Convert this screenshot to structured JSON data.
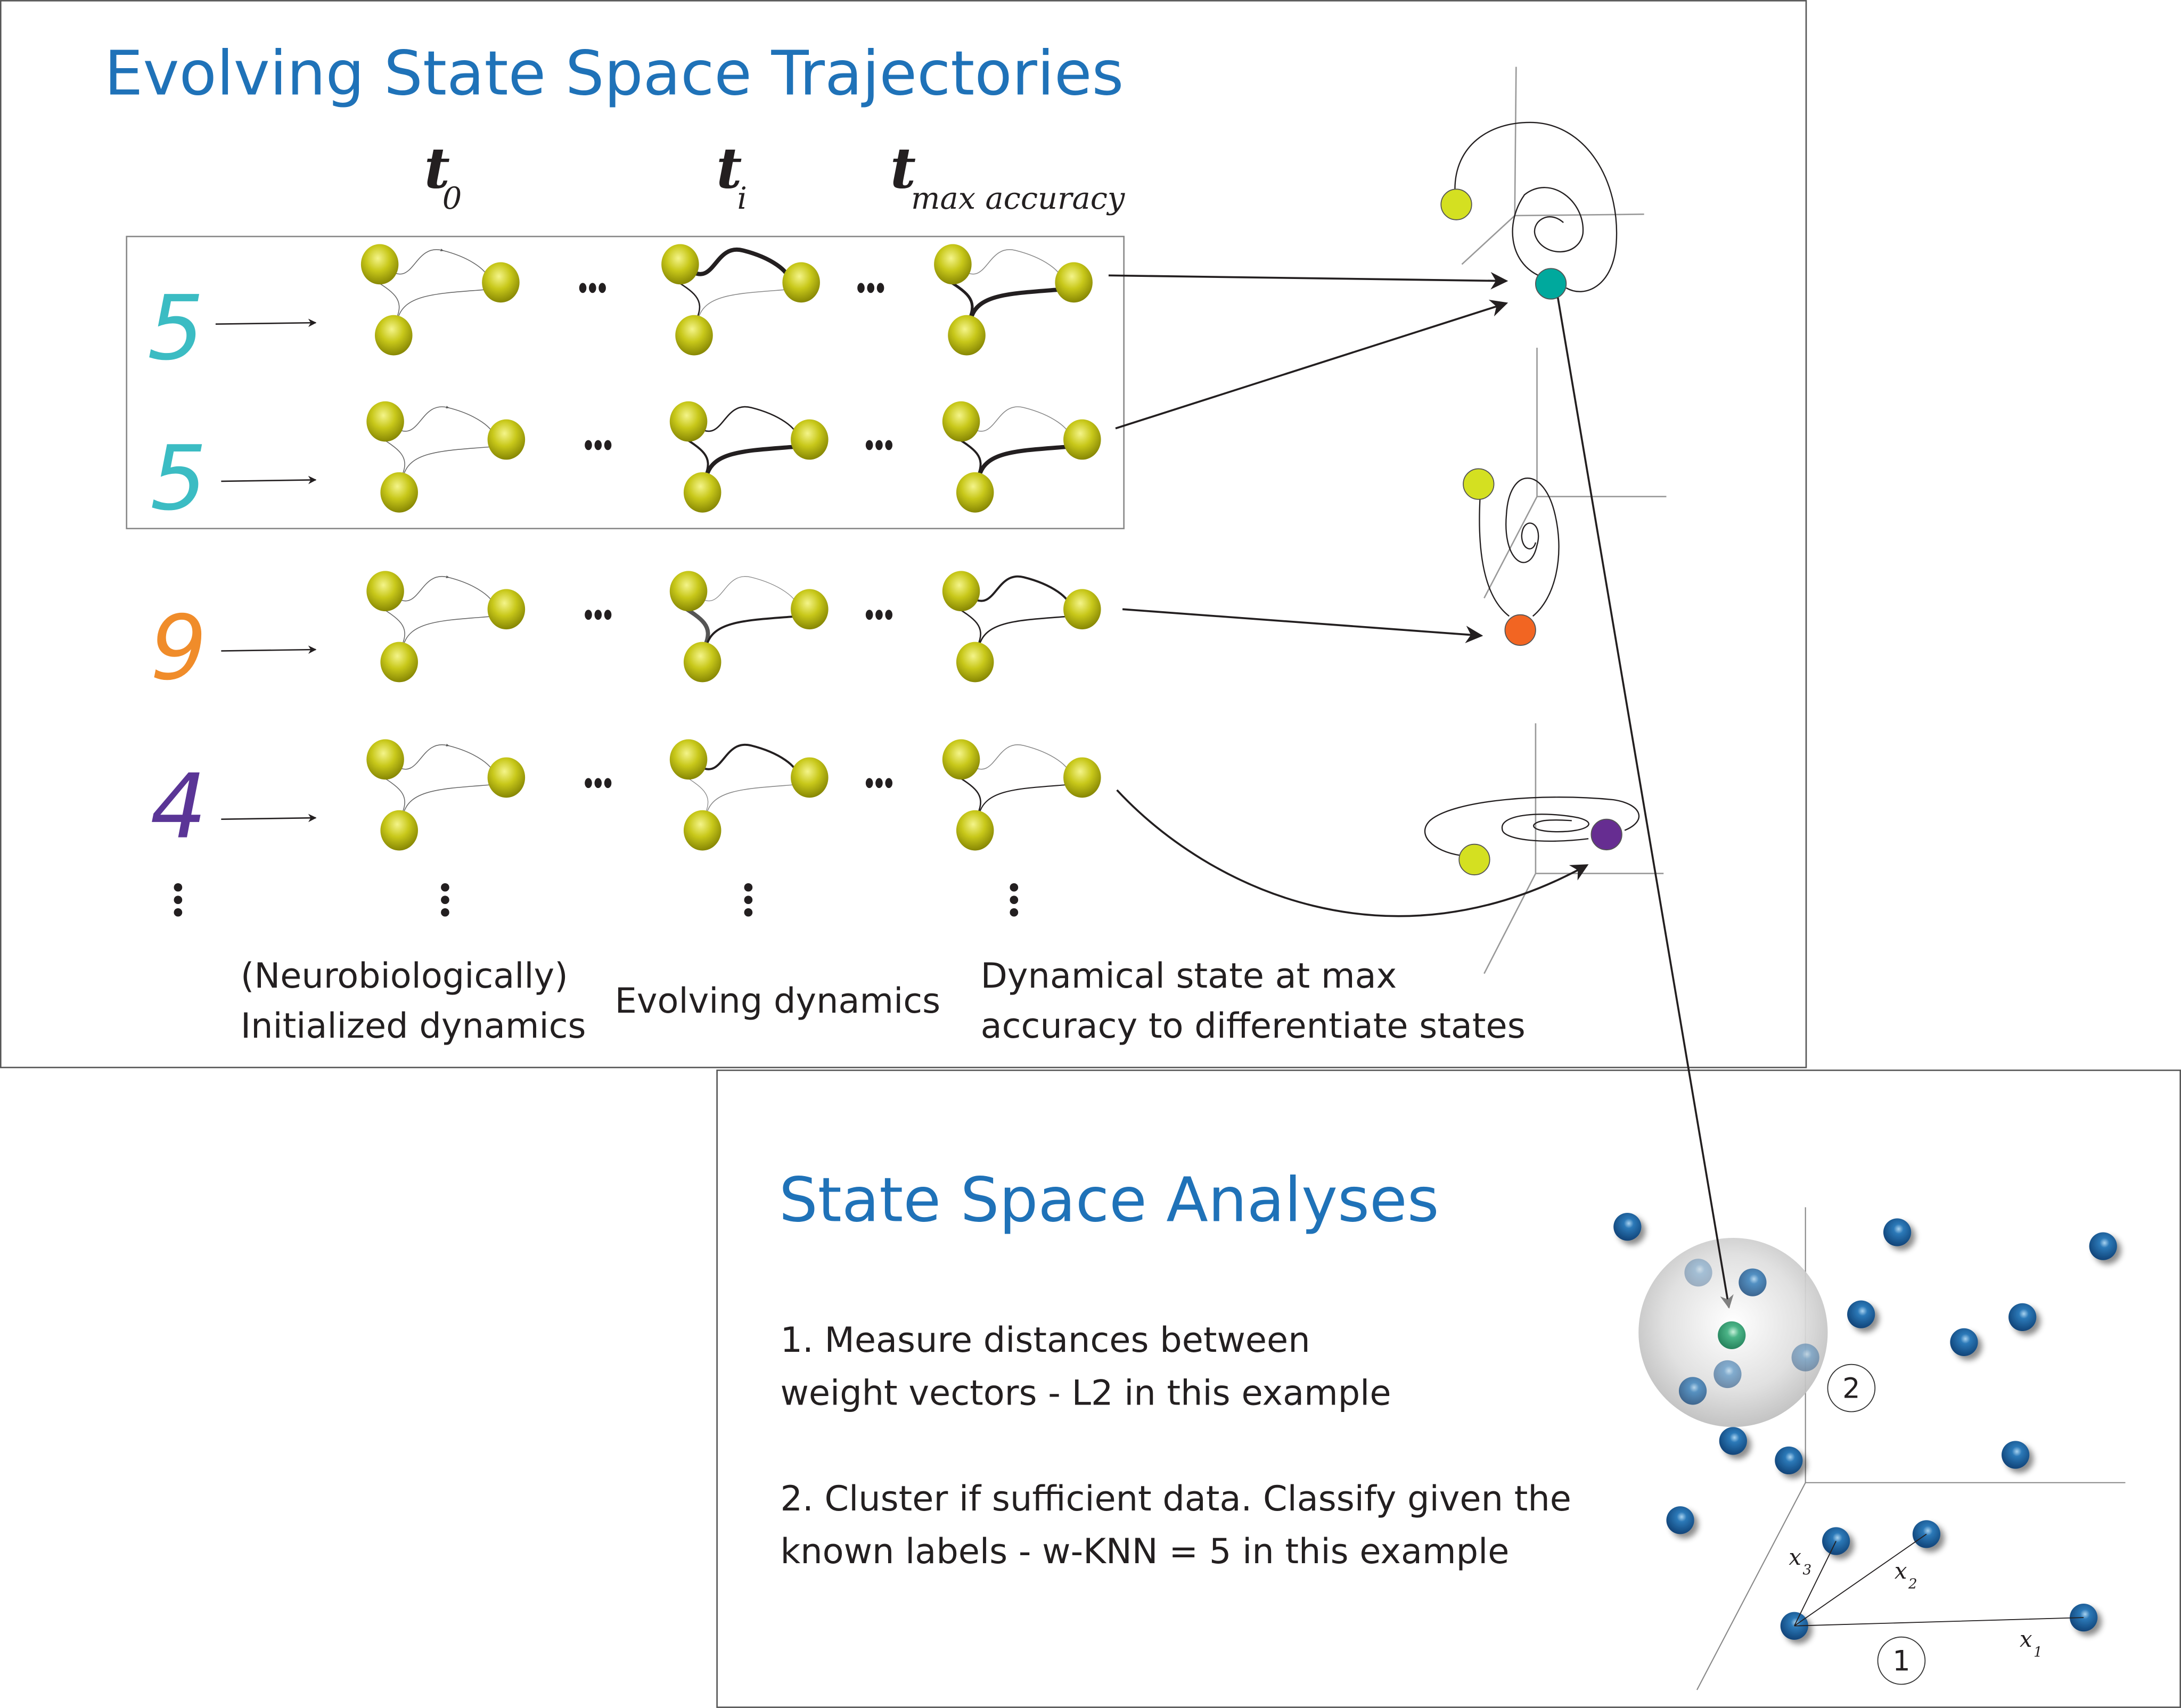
{
  "top_panel": {
    "title": "Evolving State Space Trajectories",
    "time_labels": [
      {
        "t": "t",
        "sub": "0"
      },
      {
        "t": "t",
        "sub": "i"
      },
      {
        "t": "t",
        "sub": "max accuracy"
      }
    ],
    "rows": [
      {
        "digit": "5",
        "color": "#3bbcc3"
      },
      {
        "digit": "5",
        "color": "#3bbcc3"
      },
      {
        "digit": "9",
        "color": "#f08c2a"
      },
      {
        "digit": "4",
        "color": "#5a3596"
      }
    ],
    "captions": {
      "initialized": [
        "(Neurobiologically)",
        "Initialized dynamics"
      ],
      "evolving": "Evolving dynamics",
      "dynamical": [
        "Dynamical state at max",
        "accuracy to differentiate states"
      ]
    },
    "state_colors": {
      "start": "#d4e021",
      "five": "#00a99d",
      "nine": "#f26522",
      "four": "#662d91"
    }
  },
  "bottom_panel": {
    "title": "State Space Analyses",
    "step1": [
      "1. Measure distances between",
      "weight vectors -  L2 in this example"
    ],
    "step2": [
      "2. Cluster if sufficient data. Classify given the",
      "known labels - w-KNN = 5 in this example"
    ],
    "markers": [
      "1",
      "2"
    ],
    "distance_labels": [
      {
        "x": "x",
        "sub": "1"
      },
      {
        "x": "x",
        "sub": "2"
      },
      {
        "x": "x",
        "sub": "3"
      }
    ],
    "colors": {
      "point": "#1b5a9a",
      "query": "#3aa77a",
      "neighborhood": "#bdbdbd"
    }
  }
}
